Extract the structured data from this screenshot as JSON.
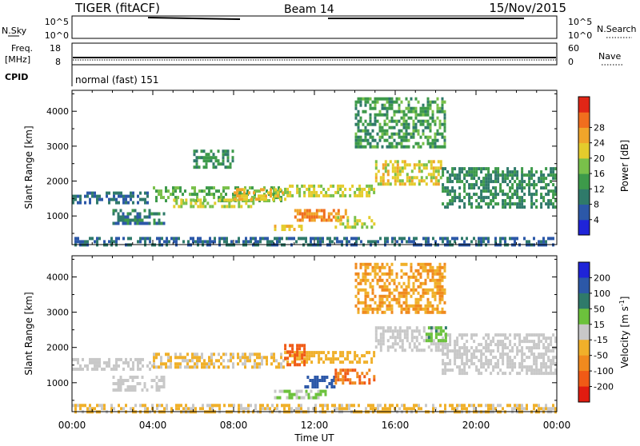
{
  "header": {
    "title": "TIGER (fitACF)",
    "beam": "Beam 14",
    "date": "15/Nov/2015"
  },
  "strips": {
    "nsky_label": "N.Sky",
    "nsky_ticks": [
      "10^5",
      "10^0"
    ],
    "nsearch_label": "N.Search",
    "nsearch_ticks": [
      "10^5",
      "10^0"
    ],
    "freq_label": "Freq.",
    "freq_unit": "[MHz]",
    "freq_ticks": [
      "18",
      "8"
    ],
    "nave_label": "Nave",
    "nave_ticks": [
      "60",
      "0"
    ],
    "cpid_label": "CPID",
    "cpid_value": "normal (fast) 151"
  },
  "chart_data": [
    {
      "type": "heatmap",
      "name": "power",
      "ylabel": "Slant Range [km]",
      "yticks": [
        "1000",
        "2000",
        "3000",
        "4000"
      ],
      "ylim": [
        180,
        4600
      ],
      "xlim": [
        0,
        24
      ],
      "colorbar_label": "Power [dB]",
      "colorbar_ticks": [
        "4",
        "8",
        "12",
        "16",
        "20",
        "24",
        "28"
      ],
      "colors": [
        "#1f24d8",
        "#2c58a8",
        "#2f7a6a",
        "#3d9a4a",
        "#79c04a",
        "#e4cc2c",
        "#f0a52a",
        "#f06e1e",
        "#e02616"
      ],
      "regions": [
        {
          "t0": 0.0,
          "t1": 4.0,
          "r0": 1400,
          "r1": 1700,
          "value": 8
        },
        {
          "t0": 4.0,
          "t1": 10.5,
          "r0": 1450,
          "r1": 1850,
          "value": 16
        },
        {
          "t0": 5.0,
          "t1": 9.0,
          "r0": 1300,
          "r1": 1500,
          "value": 20
        },
        {
          "t0": 8.0,
          "t1": 10.5,
          "r0": 1500,
          "r1": 1800,
          "value": 24
        },
        {
          "t0": 10.5,
          "t1": 15.0,
          "r0": 1600,
          "r1": 1900,
          "value": 20
        },
        {
          "t0": 15.0,
          "t1": 18.3,
          "r0": 1900,
          "r1": 2600,
          "value": 22
        },
        {
          "t0": 18.3,
          "t1": 24.0,
          "r0": 1300,
          "r1": 2400,
          "value": 12
        },
        {
          "t0": 2.0,
          "t1": 4.5,
          "r0": 800,
          "r1": 1200,
          "value": 10
        },
        {
          "t0": 11.0,
          "t1": 13.5,
          "r0": 900,
          "r1": 1200,
          "value": 28
        },
        {
          "t0": 13.0,
          "t1": 15.0,
          "r0": 700,
          "r1": 1000,
          "value": 20
        },
        {
          "t0": 10.0,
          "t1": 11.5,
          "r0": 600,
          "r1": 750,
          "value": 24
        },
        {
          "t0": 0.0,
          "t1": 24.0,
          "r0": 200,
          "r1": 400,
          "value": 8
        },
        {
          "t0": 6.0,
          "t1": 8.0,
          "r0": 2400,
          "r1": 2900,
          "value": 12
        },
        {
          "t0": 14.0,
          "t1": 18.5,
          "r0": 3000,
          "r1": 4400,
          "value": 14
        }
      ]
    },
    {
      "type": "heatmap",
      "name": "velocity",
      "ylabel": "Slant Range [km]",
      "yticks": [
        "1000",
        "2000",
        "3000",
        "4000"
      ],
      "ylim": [
        180,
        4600
      ],
      "xlim": [
        0,
        24
      ],
      "xlabel": "Time UT",
      "xticks": [
        "00:00",
        "04:00",
        "08:00",
        "12:00",
        "16:00",
        "20:00",
        "00:00"
      ],
      "colorbar_label": "Velocity [m s^-1]",
      "colorbar_ticks": [
        "200",
        "100",
        "50",
        "15",
        "-15",
        "-50",
        "-100",
        "-200"
      ],
      "colors": [
        "#1f24d8",
        "#2c58a8",
        "#2f7a6a",
        "#6cc23c",
        "#c8c8c8",
        "#f0b02a",
        "#f08a1e",
        "#f05a16",
        "#e01c10"
      ],
      "regions": [
        {
          "t0": 0.0,
          "t1": 4.0,
          "r0": 1400,
          "r1": 1700,
          "value": 0
        },
        {
          "t0": 4.0,
          "t1": 10.5,
          "r0": 1450,
          "r1": 1850,
          "value": -20
        },
        {
          "t0": 10.5,
          "t1": 15.0,
          "r0": 1600,
          "r1": 1900,
          "value": -30
        },
        {
          "t0": 15.0,
          "t1": 18.3,
          "r0": 1900,
          "r1": 2600,
          "value": 0
        },
        {
          "t0": 18.3,
          "t1": 24.0,
          "r0": 1300,
          "r1": 2400,
          "value": 0
        },
        {
          "t0": 2.0,
          "t1": 4.5,
          "r0": 800,
          "r1": 1200,
          "value": 0
        },
        {
          "t0": 11.5,
          "t1": 13.0,
          "r0": 900,
          "r1": 1200,
          "value": 150
        },
        {
          "t0": 13.0,
          "t1": 15.0,
          "r0": 1000,
          "r1": 1400,
          "value": -100
        },
        {
          "t0": 10.0,
          "t1": 12.5,
          "r0": 600,
          "r1": 800,
          "value": 20
        },
        {
          "t0": 0.0,
          "t1": 24.0,
          "r0": 200,
          "r1": 400,
          "value": -20
        },
        {
          "t0": 10.5,
          "t1": 11.5,
          "r0": 1500,
          "r1": 2100,
          "value": -150
        },
        {
          "t0": 17.5,
          "t1": 18.5,
          "r0": 2200,
          "r1": 2600,
          "value": 40
        },
        {
          "t0": 14.0,
          "t1": 18.5,
          "r0": 3000,
          "r1": 4400,
          "value": -50
        }
      ]
    }
  ]
}
